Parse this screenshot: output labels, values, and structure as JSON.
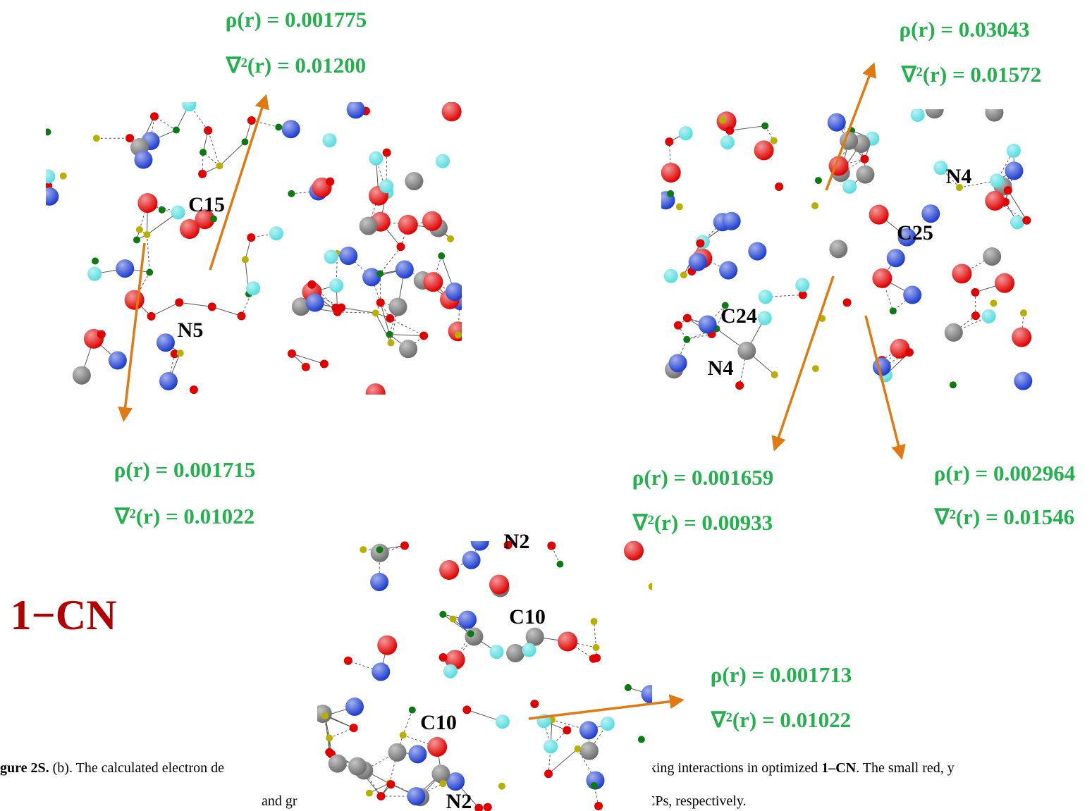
{
  "title": "1−CN",
  "panels": [
    {
      "labels": [
        "C15",
        "N5"
      ],
      "annotations": [
        {
          "rho": "ρ(r) = 0.001775",
          "laplacian": "∇²(r) = 0.01200"
        },
        {
          "rho": "ρ(r) = 0.001715",
          "laplacian": "∇²(r) = 0.01022"
        }
      ]
    },
    {
      "labels": [
        "N4",
        "C25",
        "C24",
        "N4"
      ],
      "annotations": [
        {
          "rho": "ρ(r) = 0.03043",
          "laplacian": "∇²(r) = 0.01572"
        },
        {
          "rho": "ρ(r) = 0.001659",
          "laplacian": "∇²(r) = 0.00933"
        },
        {
          "rho": "ρ(r) = 0.002964",
          "laplacian": "∇²(r) = 0.01546"
        }
      ]
    },
    {
      "labels": [
        "N2",
        "C10",
        "C10",
        "N2"
      ],
      "annotations": [
        {
          "rho": "ρ(r) = 0.001713",
          "laplacian": "∇²(r) = 0.01022"
        }
      ]
    }
  ],
  "caption": {
    "line1": [
      "gure 2S.",
      " (b). The calculated electron de",
      "cking interactions in optimized ",
      "1–CN",
      ". The small red, y"
    ],
    "line2": [
      "and gr",
      "CPs, respectively."
    ]
  }
}
